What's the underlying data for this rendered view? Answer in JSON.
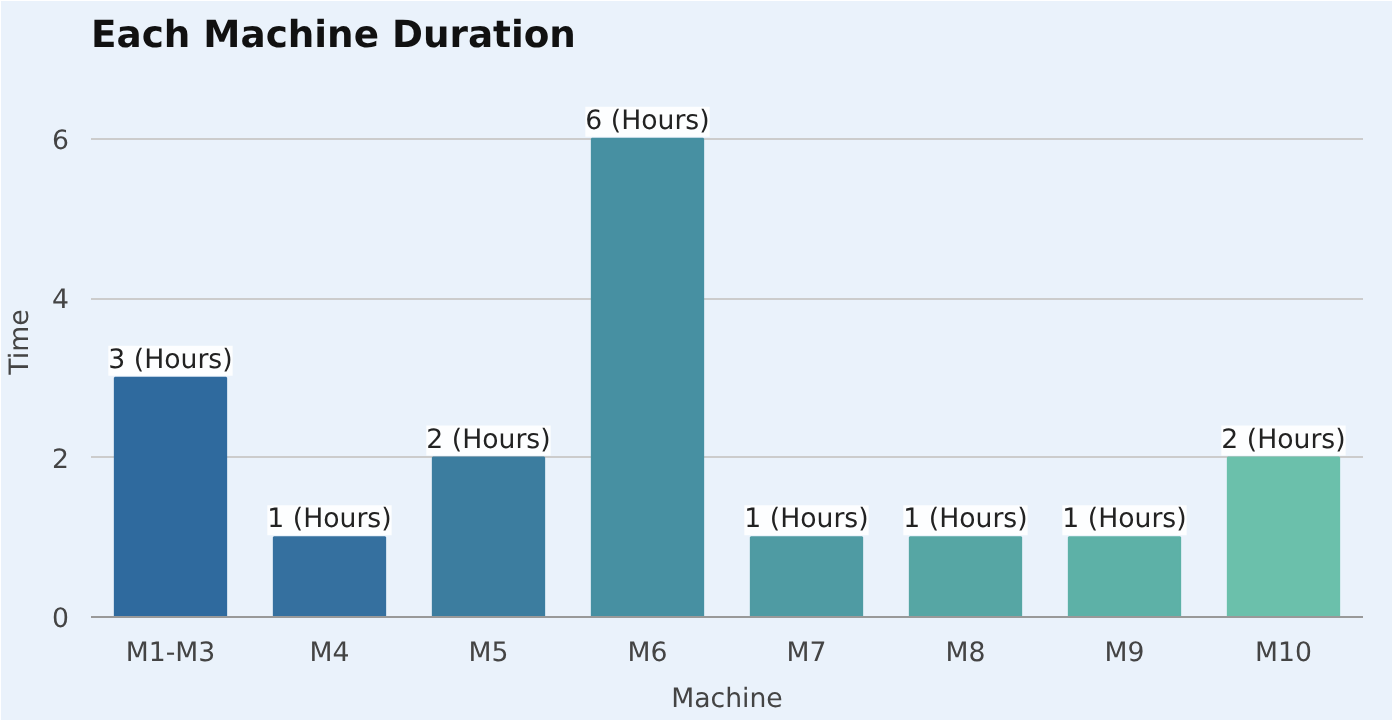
{
  "chart_data": {
    "type": "bar",
    "title": "Each Machine Duration",
    "xlabel": "Machine",
    "ylabel": "Time",
    "categories": [
      "M1-M3",
      "M4",
      "M5",
      "M6",
      "M7",
      "M8",
      "M9",
      "M10"
    ],
    "values": [
      3,
      1,
      2,
      6,
      1,
      1,
      1,
      2
    ],
    "colors": [
      "#2f6a9e",
      "#35709f",
      "#3c7d9f",
      "#4790a2",
      "#4f9ba3",
      "#56a6a4",
      "#5db1a7",
      "#6bc0ab"
    ],
    "value_labels": [
      "3 (Hours)",
      "1 (Hours)",
      "2 (Hours)",
      "6 (Hours)",
      "1 (Hours)",
      "1 (Hours)",
      "1 (Hours)",
      "2 (Hours)"
    ],
    "ylim": [
      0,
      6.9
    ],
    "yticks": [
      0,
      2,
      4,
      6
    ],
    "grid": "y"
  }
}
